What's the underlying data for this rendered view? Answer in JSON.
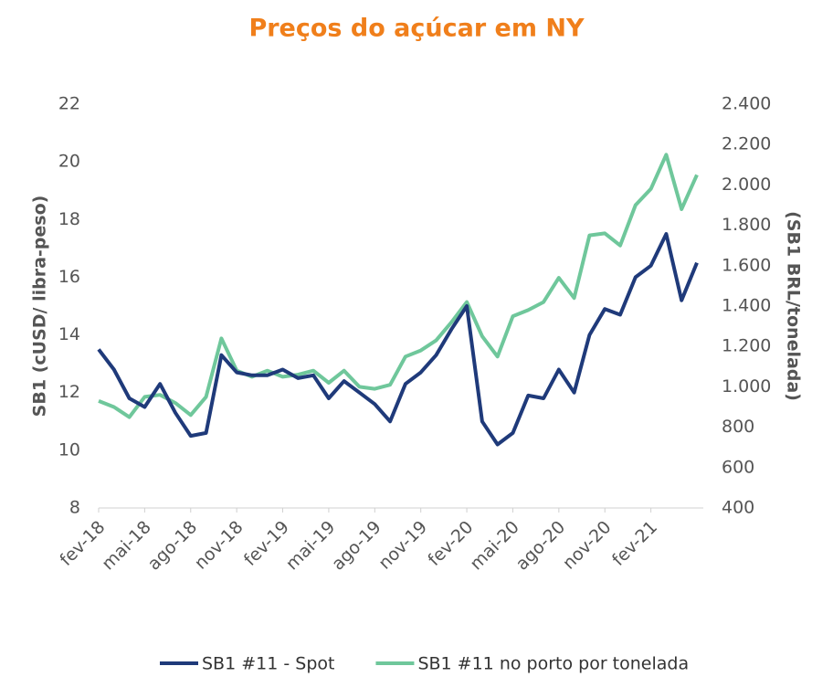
{
  "chart_data": {
    "type": "line",
    "title": "Preços do açúcar em NY",
    "y_label": "SB1 (cUSD/ libra-peso)",
    "y2_label": "(SB1 BRL/tonelada)",
    "categories": [
      "fev-18",
      null,
      null,
      "mai-18",
      null,
      null,
      "ago-18",
      null,
      null,
      "nov-18",
      null,
      null,
      "fev-19",
      null,
      null,
      "mai-19",
      null,
      null,
      "ago-19",
      null,
      null,
      "nov-19",
      null,
      null,
      "fev-20",
      null,
      null,
      "mai-20",
      null,
      null,
      "ago-20",
      null,
      null,
      "nov-20",
      null,
      null,
      "fev-21",
      null,
      null,
      null
    ],
    "series": [
      {
        "name": "SB1 #11 - Spot",
        "color": "#1f3a7a",
        "values": [
          13.5,
          12.8,
          11.8,
          11.5,
          12.3,
          11.3,
          10.5,
          10.6,
          13.3,
          12.7,
          12.6,
          12.6,
          12.8,
          12.5,
          12.6,
          11.8,
          12.4,
          12.0,
          11.6,
          11.0,
          12.3,
          12.7,
          13.3,
          14.2,
          15.0,
          11.0,
          10.2,
          10.6,
          11.9,
          11.8,
          12.8,
          12.0,
          14.0,
          14.9,
          14.7,
          16.0,
          16.4,
          17.5,
          15.2,
          16.5
        ]
      },
      {
        "name": "SB1 #11 no porto por tonelada",
        "color": "#6fc79b",
        "axis": "y2",
        "values": [
          930,
          900,
          850,
          950,
          960,
          920,
          860,
          950,
          1240,
          1080,
          1050,
          1080,
          1050,
          1060,
          1080,
          1020,
          1080,
          1000,
          990,
          1010,
          1150,
          1180,
          1230,
          1320,
          1420,
          1250,
          1150,
          1350,
          1380,
          1420,
          1540,
          1440,
          1750,
          1760,
          1700,
          1900,
          1980,
          2150,
          1880,
          2050
        ]
      }
    ],
    "ylim": [
      8,
      22
    ],
    "yticks": [
      8,
      10,
      12,
      14,
      16,
      18,
      20,
      22
    ],
    "y2lim": [
      400,
      2400
    ],
    "y2ticks": [
      400,
      600,
      800,
      {
        "value": 1000,
        "label": "1.000"
      },
      {
        "value": 1200,
        "label": "1.200"
      },
      {
        "value": 1400,
        "label": "1.400"
      },
      {
        "value": 1600,
        "label": "1.600"
      },
      {
        "value": 1800,
        "label": "1.800"
      },
      {
        "value": 2000,
        "label": "2.000"
      },
      {
        "value": 2200,
        "label": "2.200"
      },
      {
        "value": 2400,
        "label": "2.400"
      }
    ],
    "title_color": "#f07f1b"
  }
}
